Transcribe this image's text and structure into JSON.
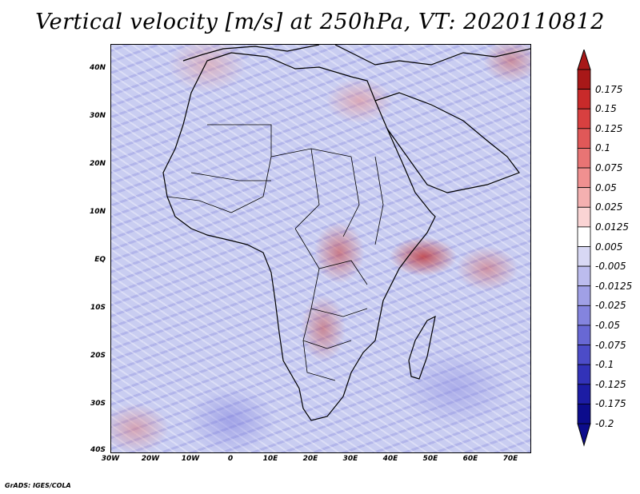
{
  "title": "Vertical velocity [m/s] at 250hPa, VT: 2020110812",
  "footer": "GrADS: IGES/COLA",
  "map": {
    "region": "Africa and surrounding oceans",
    "lon_range": [
      -30,
      75
    ],
    "lat_range": [
      -40,
      45
    ],
    "lat_labels": [
      "40N",
      "30N",
      "20N",
      "10N",
      "EQ",
      "10S",
      "20S",
      "30S",
      "40S"
    ],
    "lon_labels": [
      "30W",
      "20W",
      "10W",
      "0",
      "10E",
      "20E",
      "30E",
      "40E",
      "50E",
      "60E",
      "70E"
    ]
  },
  "colorbar": {
    "labels": [
      "0.175",
      "0.15",
      "0.125",
      "0.1",
      "0.075",
      "0.05",
      "0.025",
      "0.0125",
      "0.005",
      "-0.005",
      "-0.0125",
      "-0.025",
      "-0.05",
      "-0.075",
      "-0.1",
      "-0.125",
      "-0.175",
      "-0.2"
    ],
    "colors": [
      "#a81818",
      "#c82a2a",
      "#d84040",
      "#e05858",
      "#e87474",
      "#f09090",
      "#f4b0b0",
      "#fad4d4",
      "#ffffff",
      "#d8d8f4",
      "#bcbcee",
      "#a0a0e6",
      "#8484de",
      "#6868d4",
      "#4c4cc8",
      "#3232b8",
      "#1c1ca4",
      "#0c0c8c"
    ]
  }
}
